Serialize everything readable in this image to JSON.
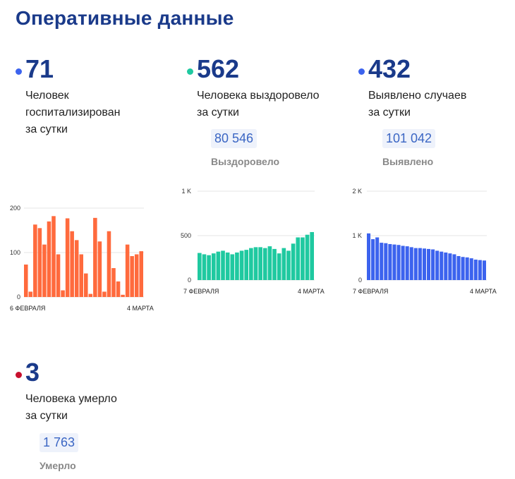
{
  "title": "Оперативные данные",
  "colors": {
    "title": "#1a3a8a",
    "hospitalized": "#ff6a3d",
    "recovered": "#1fc9a0",
    "detected": "#3c63ee",
    "died": "#c8102e",
    "grid": "#e6e6e6"
  },
  "stats": {
    "hospitalized": {
      "number": "71",
      "desc": [
        "Человек",
        "госпитализирован",
        "за сутки"
      ]
    },
    "recovered": {
      "number": "562",
      "desc": [
        "Человека выздоровело",
        "за сутки"
      ],
      "total": "80 546",
      "total_label": "Выздоровело"
    },
    "detected": {
      "number": "432",
      "desc": [
        "Выявлено случаев",
        "за сутки"
      ],
      "total": "101 042",
      "total_label": "Выявлено"
    },
    "died": {
      "number": "3",
      "desc": [
        "Человека умерло",
        "за сутки"
      ],
      "total": "1 763",
      "total_label": "Умерло"
    }
  },
  "chart_data": [
    {
      "type": "bar",
      "series_key": "hospitalized",
      "x_start_label": "6 ФЕВРАЛЯ",
      "x_end_label": "4 МАРТА",
      "y_ticks": [
        0,
        100,
        200
      ],
      "y_tick_labels": [
        "0",
        "100",
        "200"
      ],
      "ylim": [
        0,
        200
      ],
      "values": [
        73,
        12,
        163,
        155,
        118,
        170,
        182,
        96,
        15,
        177,
        148,
        128,
        96,
        53,
        7,
        178,
        125,
        12,
        148,
        65,
        35,
        5,
        118,
        92,
        96,
        103
      ]
    },
    {
      "type": "bar",
      "series_key": "recovered",
      "x_start_label": "7 ФЕВРАЛЯ",
      "x_end_label": "4 МАРТА",
      "y_ticks": [
        0,
        500,
        1000
      ],
      "y_tick_labels": [
        "0",
        "500",
        "1 K"
      ],
      "ylim": [
        0,
        1000
      ],
      "values": [
        305,
        290,
        280,
        300,
        320,
        330,
        310,
        290,
        310,
        330,
        340,
        360,
        370,
        370,
        360,
        380,
        350,
        300,
        360,
        330,
        410,
        480,
        480,
        510,
        540
      ]
    },
    {
      "type": "bar",
      "series_key": "detected",
      "x_start_label": "7 ФЕВРАЛЯ",
      "x_end_label": "4 МАРТА",
      "y_ticks": [
        0,
        1000,
        2000
      ],
      "y_tick_labels": [
        "0",
        "1 K",
        "2 K"
      ],
      "ylim": [
        0,
        2000
      ],
      "values": [
        1050,
        920,
        960,
        840,
        830,
        810,
        800,
        790,
        770,
        760,
        740,
        720,
        720,
        710,
        700,
        690,
        660,
        640,
        620,
        600,
        580,
        540,
        520,
        510,
        490,
        460,
        450,
        440
      ]
    }
  ]
}
